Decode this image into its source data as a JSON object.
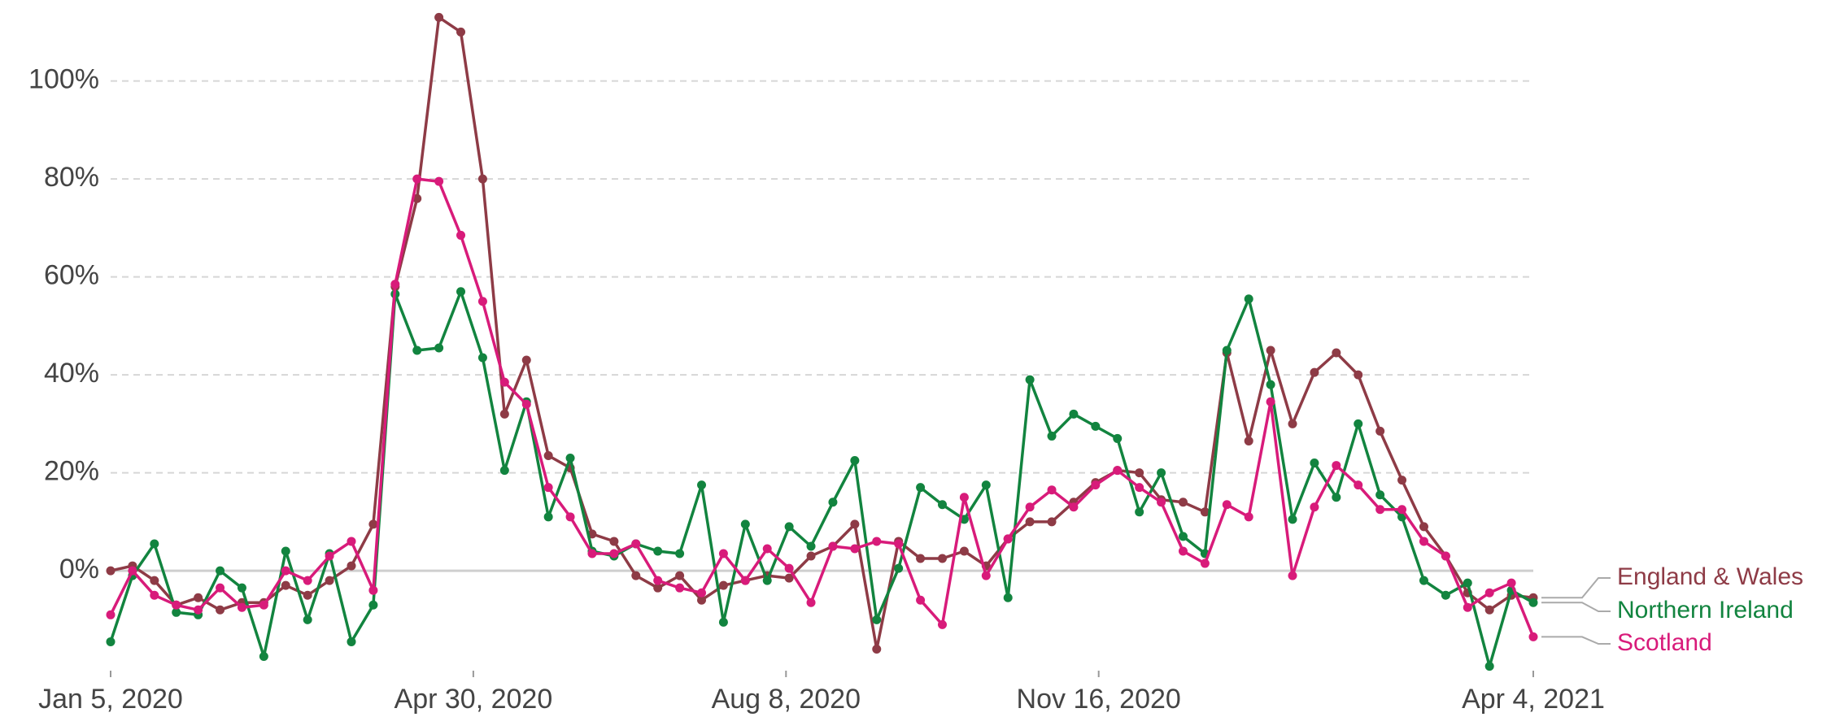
{
  "chart_data": {
    "type": "line",
    "x": [
      "2020-01-05",
      "2020-01-12",
      "2020-01-19",
      "2020-01-26",
      "2020-02-02",
      "2020-02-09",
      "2020-02-16",
      "2020-02-23",
      "2020-03-01",
      "2020-03-08",
      "2020-03-15",
      "2020-03-22",
      "2020-03-29",
      "2020-04-05",
      "2020-04-12",
      "2020-04-19",
      "2020-04-26",
      "2020-05-03",
      "2020-05-10",
      "2020-05-17",
      "2020-05-24",
      "2020-05-31",
      "2020-06-07",
      "2020-06-14",
      "2020-06-21",
      "2020-06-28",
      "2020-07-05",
      "2020-07-12",
      "2020-07-19",
      "2020-07-26",
      "2020-08-02",
      "2020-08-09",
      "2020-08-16",
      "2020-08-23",
      "2020-08-30",
      "2020-09-06",
      "2020-09-13",
      "2020-09-20",
      "2020-09-27",
      "2020-10-04",
      "2020-10-11",
      "2020-10-18",
      "2020-10-25",
      "2020-11-01",
      "2020-11-08",
      "2020-11-15",
      "2020-11-22",
      "2020-11-29",
      "2020-12-06",
      "2020-12-13",
      "2020-12-20",
      "2020-12-27",
      "2021-01-03",
      "2021-01-10",
      "2021-01-17",
      "2021-01-24",
      "2021-01-31",
      "2021-02-07",
      "2021-02-14",
      "2021-02-21",
      "2021-02-28",
      "2021-03-07",
      "2021-03-14",
      "2021-03-21",
      "2021-03-28",
      "2021-04-04"
    ],
    "series": [
      {
        "name": "England & Wales",
        "color": "#8e3b46",
        "values": [
          0,
          1,
          -2,
          -7,
          -5.5,
          -8,
          -6.5,
          -6.5,
          -3,
          -5,
          -2,
          1,
          9.5,
          58,
          76,
          113,
          110,
          80,
          32,
          43,
          23.5,
          21,
          7.5,
          6,
          -1,
          -3.5,
          -1,
          -6,
          -3,
          -2,
          -1,
          -1.5,
          3,
          5,
          9.5,
          -16,
          6,
          2.5,
          2.5,
          4,
          1,
          6.5,
          10,
          10,
          14,
          18,
          20.5,
          20,
          14.5,
          14,
          12,
          44.5,
          26.5,
          45,
          30,
          40.5,
          44.5,
          40,
          28.5,
          18.5,
          9,
          3,
          -4.5,
          -8,
          -5,
          -5.5
        ]
      },
      {
        "name": "Northern Ireland",
        "color": "#12843f",
        "values": [
          -14.5,
          -1,
          5.5,
          -8.5,
          -9,
          0,
          -3.5,
          -17.5,
          4,
          -10,
          3.5,
          -14.5,
          -7,
          56.5,
          45,
          45.5,
          57,
          43.5,
          20.5,
          34.5,
          11,
          23,
          4,
          3,
          5.5,
          4,
          3.5,
          17.5,
          -10.5,
          9.5,
          -2,
          9,
          5,
          14,
          22.5,
          -10,
          0.5,
          17,
          13.5,
          10.5,
          17.5,
          -5.5,
          39,
          27.5,
          32,
          29.5,
          27,
          12,
          20,
          7,
          3.5,
          45,
          55.5,
          38,
          10.5,
          22,
          15,
          30,
          15.5,
          11,
          -2,
          -5,
          -2.5,
          -19.5,
          -4,
          -6.5
        ]
      },
      {
        "name": "Scotland",
        "color": "#d81b7a",
        "values": [
          -9,
          0,
          -5,
          -7,
          -8,
          -3.5,
          -7.5,
          -7,
          0,
          -2,
          3,
          6,
          -4,
          58.5,
          80,
          79.5,
          68.5,
          55,
          38.5,
          34,
          17,
          11,
          3.5,
          3.5,
          5.5,
          -2,
          -3.5,
          -4.5,
          3.5,
          -2,
          4.5,
          0.5,
          -6.5,
          5,
          4.5,
          6,
          5.5,
          -6,
          -11,
          15,
          -1,
          6.5,
          13,
          16.5,
          13,
          17.5,
          20.5,
          17,
          14,
          4,
          1.5,
          13.5,
          11,
          34.5,
          -1,
          13,
          21.5,
          17.5,
          12.5,
          12.5,
          6,
          3,
          -7.5,
          -4.5,
          -2.5,
          -13.5
        ]
      }
    ],
    "xlim": [
      "2020-01-05",
      "2021-04-04"
    ],
    "xticks": [
      {
        "value": "2020-01-05",
        "label": "Jan 5, 2020"
      },
      {
        "value": "2020-04-30",
        "label": "Apr 30, 2020"
      },
      {
        "value": "2020-08-08",
        "label": "Aug 8, 2020"
      },
      {
        "value": "2020-11-16",
        "label": "Nov 16, 2020"
      },
      {
        "value": "2021-04-04",
        "label": "Apr 4, 2021"
      }
    ],
    "ylim": [
      -25,
      115
    ],
    "yticks": [
      {
        "value": 0,
        "label": "0%"
      },
      {
        "value": 20,
        "label": "20%"
      },
      {
        "value": 40,
        "label": "40%"
      },
      {
        "value": 60,
        "label": "60%"
      },
      {
        "value": 80,
        "label": "80%"
      },
      {
        "value": 100,
        "label": "100%"
      }
    ],
    "grid": true
  }
}
